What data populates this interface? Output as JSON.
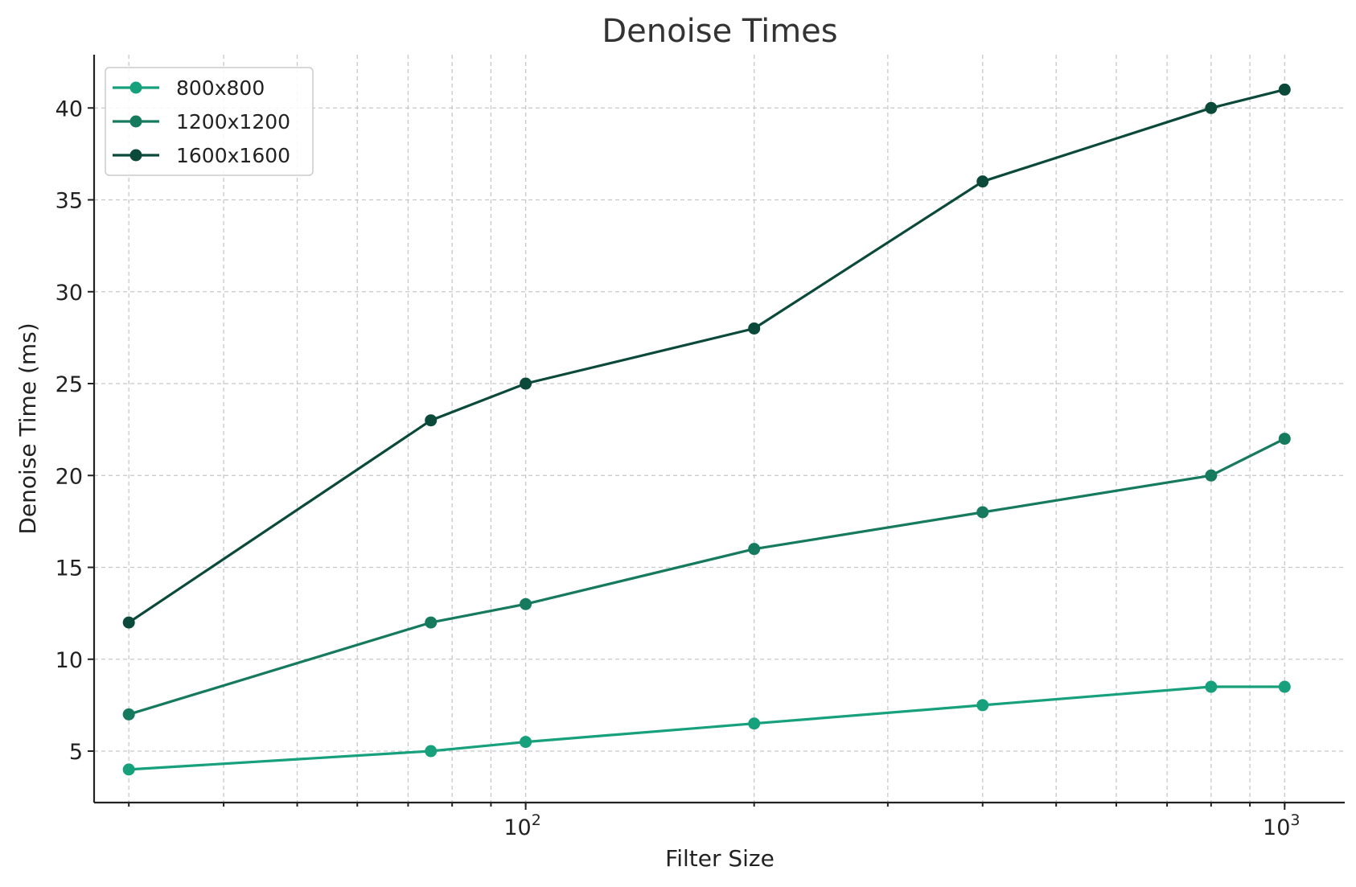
{
  "chart_data": {
    "type": "line",
    "title": "Denoise Times",
    "xlabel": "Filter Size",
    "ylabel": "Denoise Time (ms)",
    "xscale": "log",
    "xlim": [
      27,
      1200
    ],
    "ylim": [
      2.2,
      42.9
    ],
    "x": [
      30,
      75,
      100,
      200,
      400,
      800,
      1000
    ],
    "yticks": [
      5,
      10,
      15,
      20,
      25,
      30,
      35,
      40
    ],
    "xticks": [
      {
        "value": 100,
        "base": "10",
        "exp": "2"
      },
      {
        "value": 1000,
        "base": "10",
        "exp": "3"
      }
    ],
    "grid": true,
    "legend_position": "top-left",
    "series": [
      {
        "name": "800x800",
        "color": "#16a07c",
        "values": [
          4,
          5,
          5.5,
          6.5,
          7.5,
          8.5,
          8.5
        ]
      },
      {
        "name": "1200x1200",
        "color": "#167a5e",
        "values": [
          7,
          12,
          13,
          16,
          18,
          20,
          22
        ]
      },
      {
        "name": "1600x1600",
        "color": "#0b4a3a",
        "values": [
          12,
          23,
          25,
          28,
          36,
          40,
          41
        ]
      }
    ]
  }
}
